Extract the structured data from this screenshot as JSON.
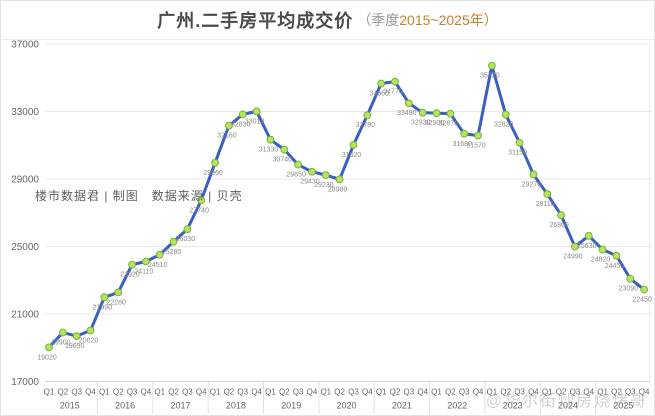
{
  "title": {
    "main": "广州.二手房平均成交价",
    "paren_open": "（季度",
    "range_with_close": "2015~2025年）"
  },
  "watermarks": {
    "source_credit": "楼市数据君 | 制图　数据来源 | 贝壳",
    "corner": "@华尔街炒房烧烤哥"
  },
  "chart_data": {
    "type": "line",
    "title": "广州.二手房平均成交价（季度2015~2025年）",
    "xlabel": "",
    "ylabel": "",
    "ylim": [
      17000,
      37000
    ],
    "yticks": [
      17000,
      21000,
      25000,
      29000,
      33000,
      37000
    ],
    "grid": true,
    "legend_position": "none",
    "years": [
      "2015",
      "2016",
      "2017",
      "2018",
      "2019",
      "2020",
      "2021",
      "2022",
      "2023",
      "2024",
      "2025"
    ],
    "quarter_labels": [
      "Q1",
      "Q2",
      "Q3",
      "Q4"
    ],
    "series": [
      {
        "name": "二手房平均成交价",
        "values": [
          19020,
          19900,
          19690,
          20020,
          21990,
          22280,
          23920,
          24110,
          24510,
          25280,
          26030,
          27740,
          29960,
          32160,
          32830,
          33010,
          31330,
          30740,
          29850,
          29430,
          29230,
          28980,
          31020,
          32780,
          34660,
          34770,
          33490,
          32930,
          32900,
          32870,
          31680,
          31570,
          35720,
          32820,
          31150,
          29270,
          28110,
          26860,
          24990,
          25630,
          24820,
          24450,
          23090,
          22450
        ]
      }
    ],
    "colors": {
      "line": "#3a5fc1",
      "marker_fill": "#b9e35c",
      "marker_stroke": "#74b33c",
      "grid": "#e9e9e9",
      "axis": "#cfcfcf",
      "tick_label": "#666666",
      "point_label": "#8a8a8a"
    }
  }
}
